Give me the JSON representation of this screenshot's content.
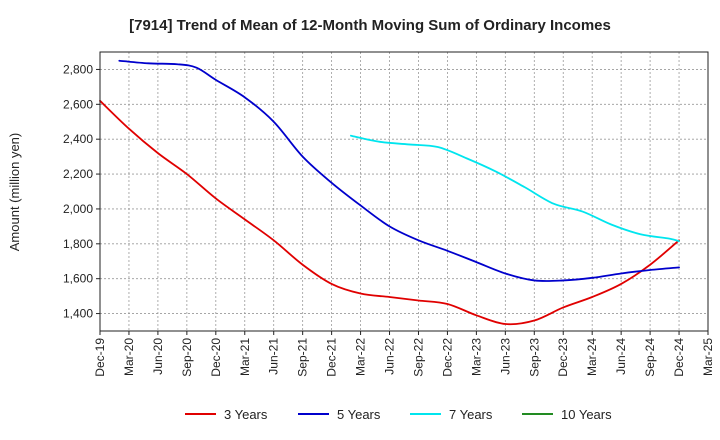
{
  "chart_data": {
    "type": "line",
    "title": "[7914]  Trend of Mean of 12-Month Moving Sum of Ordinary Incomes",
    "xlabel": "",
    "ylabel": "Amount (million yen)",
    "ylim": [
      1300,
      2900
    ],
    "yticks": [
      1400,
      1600,
      1800,
      2000,
      2200,
      2400,
      2600,
      2800
    ],
    "ytick_labels": [
      "1,400",
      "1,600",
      "1,800",
      "2,000",
      "2,200",
      "2,400",
      "2,600",
      "2,800"
    ],
    "xlim": [
      0,
      63
    ],
    "xticks": [
      0,
      3,
      6,
      9,
      12,
      15,
      18,
      21,
      24,
      27,
      30,
      33,
      36,
      39,
      42,
      45,
      48,
      51,
      54,
      57,
      60,
      63
    ],
    "xtick_labels": [
      "Dec-19",
      "Mar-20",
      "Jun-20",
      "Sep-20",
      "Dec-20",
      "Mar-21",
      "Jun-21",
      "Sep-21",
      "Dec-21",
      "Mar-22",
      "Jun-22",
      "Sep-22",
      "Dec-22",
      "Mar-23",
      "Jun-23",
      "Sep-23",
      "Dec-23",
      "Mar-24",
      "Jun-24",
      "Sep-24",
      "Dec-24",
      "Mar-25"
    ],
    "grid": true,
    "legend_position": "bottom",
    "series": [
      {
        "name": "3 Years",
        "color": "#e00000",
        "x": [
          0,
          3,
          6,
          9,
          12,
          15,
          18,
          21,
          24,
          27,
          30,
          33,
          36,
          39,
          42,
          45,
          48,
          51,
          54,
          57,
          60
        ],
        "values": [
          2620,
          2460,
          2320,
          2200,
          2060,
          1940,
          1820,
          1680,
          1570,
          1515,
          1495,
          1475,
          1455,
          1390,
          1340,
          1360,
          1435,
          1495,
          1570,
          1680,
          1820
        ]
      },
      {
        "name": "5 Years",
        "color": "#0000cc",
        "x": [
          2,
          5,
          8,
          10,
          12,
          15,
          18,
          21,
          24,
          27,
          30,
          33,
          36,
          39,
          42,
          45,
          48,
          51,
          54,
          57,
          60
        ],
        "values": [
          2850,
          2835,
          2830,
          2810,
          2740,
          2640,
          2500,
          2300,
          2150,
          2020,
          1900,
          1820,
          1760,
          1695,
          1630,
          1590,
          1590,
          1605,
          1630,
          1650,
          1665
        ]
      },
      {
        "name": "7 Years",
        "color": "#00e5ee",
        "x": [
          26,
          29,
          32,
          35,
          38,
          41,
          44,
          47,
          50,
          53,
          56,
          59,
          60
        ],
        "values": [
          2420,
          2385,
          2370,
          2355,
          2290,
          2215,
          2125,
          2030,
          1985,
          1910,
          1855,
          1830,
          1815
        ]
      },
      {
        "name": "10 Years",
        "color": "#228b22",
        "x": [],
        "values": []
      }
    ]
  }
}
